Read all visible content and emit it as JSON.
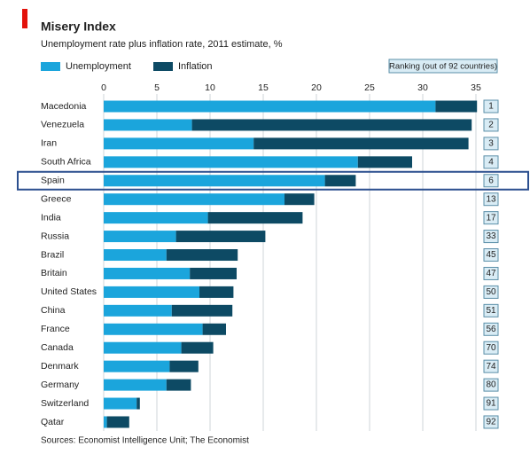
{
  "chart_data": {
    "type": "stacked-bar-horizontal",
    "title": "Misery Index",
    "subtitle": "Unemployment rate plus inflation rate, 2011 estimate, %",
    "categories": [
      "Macedonia",
      "Venezuela",
      "Iran",
      "South Africa",
      "Spain",
      "Greece",
      "India",
      "Russia",
      "Brazil",
      "Britain",
      "United States",
      "China",
      "France",
      "Canada",
      "Denmark",
      "Germany",
      "Switzerland",
      "Qatar"
    ],
    "series": [
      {
        "name": "Unemployment",
        "color": "#1ba5dc",
        "values": [
          31.2,
          8.3,
          14.1,
          23.9,
          20.8,
          17.0,
          9.8,
          6.8,
          5.9,
          8.1,
          9.0,
          6.4,
          9.3,
          7.3,
          6.2,
          5.9,
          3.1,
          0.3
        ]
      },
      {
        "name": "Inflation",
        "color": "#0d4a64",
        "values": [
          3.9,
          26.3,
          20.2,
          5.1,
          2.9,
          2.8,
          8.9,
          8.4,
          6.7,
          4.4,
          3.2,
          5.7,
          2.2,
          3.0,
          2.7,
          2.3,
          0.3,
          2.1
        ]
      }
    ],
    "xlim": [
      0,
      35
    ],
    "xticks": [
      0,
      5,
      10,
      15,
      20,
      25,
      30,
      35
    ],
    "grid": true,
    "ranking_title": "Ranking (out of 92 countries)",
    "rankings": [
      1,
      2,
      3,
      4,
      6,
      13,
      17,
      33,
      45,
      47,
      50,
      51,
      56,
      70,
      74,
      80,
      91,
      92
    ],
    "source": "Sources: Economist Intelligence Unit; The Economist"
  }
}
